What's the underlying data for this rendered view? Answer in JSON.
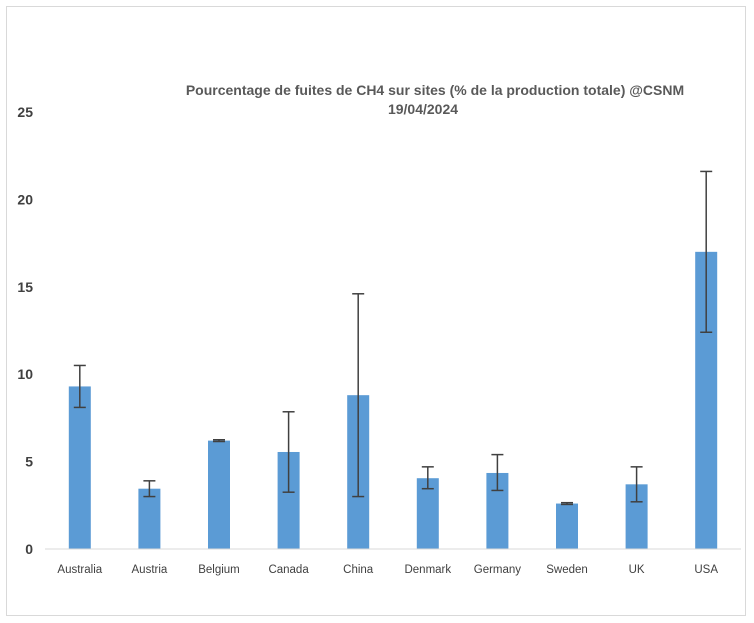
{
  "chart_data": {
    "type": "bar",
    "title_line1": "Pourcentage de fuites de CH4 sur sites (% de la production totale) @CSNM",
    "title_line2": "19/04/2024",
    "categories": [
      "Australia",
      "Austria",
      "Belgium",
      "Canada",
      "China",
      "Denmark",
      "Germany",
      "Sweden",
      "UK",
      "USA"
    ],
    "series": [
      {
        "values": [
          9.3,
          3.45,
          6.2,
          5.55,
          8.8,
          4.05,
          4.35,
          2.6,
          3.7,
          17.0
        ],
        "error_low": [
          8.1,
          3.0,
          6.15,
          3.25,
          3.0,
          3.45,
          3.35,
          2.55,
          2.7,
          12.4
        ],
        "error_high": [
          10.5,
          3.9,
          6.25,
          7.85,
          14.6,
          4.7,
          5.4,
          2.65,
          4.7,
          21.6
        ]
      }
    ],
    "yticks": [
      0,
      5,
      10,
      15,
      20,
      25
    ],
    "ylim": [
      0,
      25
    ],
    "xlabel": "",
    "ylabel": "",
    "grid": false,
    "legend": "none",
    "colors": {
      "bar": "#5b9bd5",
      "error_bar": "#404040",
      "axis": "#d9d9d9",
      "text": "#404040",
      "title": "#595959"
    }
  }
}
